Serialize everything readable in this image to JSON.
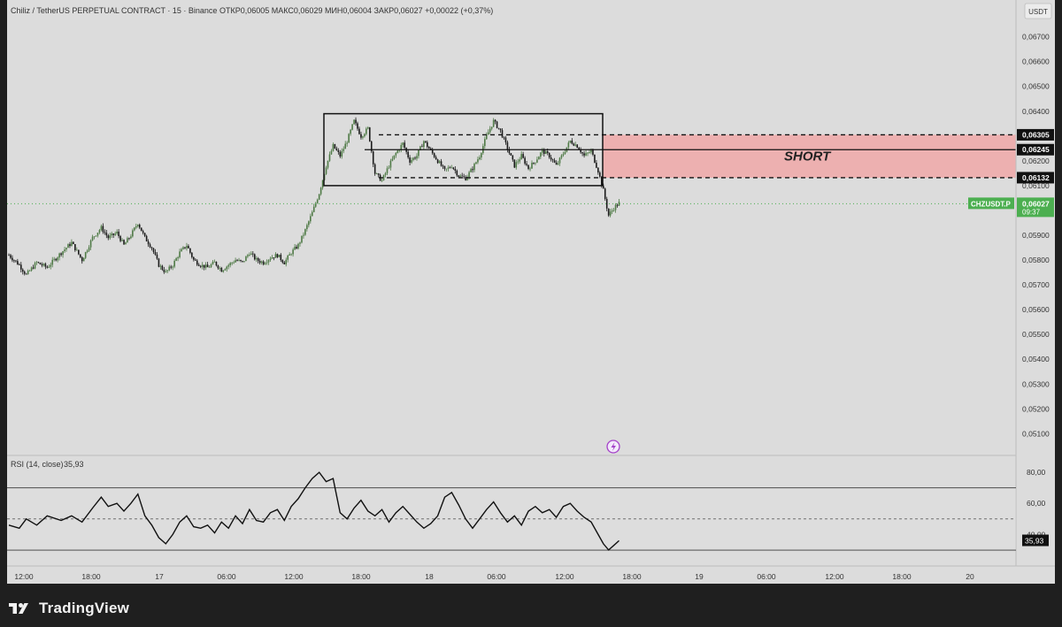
{
  "header": {
    "symbol": "Chiliz / TetherUS PERPETUAL CONTRACT · 15 · Binance",
    "ohlc": "ОТКР0,06005  МАКС0,06029  МИН0,06004  ЗАКР0,06027  +0,00022 (+0,37%)"
  },
  "price_axis": {
    "unit": "USDT",
    "ticks": [
      "0,06700",
      "0,06600",
      "0,06500",
      "0,06400",
      "0,06300",
      "0,06200",
      "0,06100",
      "0,06000",
      "0,05900",
      "0,05800",
      "0,05700",
      "0,05600",
      "0,05500",
      "0,05400",
      "0,05300",
      "0,05200",
      "0,05100"
    ],
    "level_labels": [
      {
        "text": "0,06305",
        "value": 0.06305
      },
      {
        "text": "0,06245",
        "value": 0.06245
      },
      {
        "text": "0,06132",
        "value": 0.06132
      }
    ],
    "current": {
      "symbol": "CHZUSDT.P",
      "price": "0,06027",
      "countdown": "09:37",
      "value": 0.06027,
      "color": "#4caf50"
    }
  },
  "time_axis": {
    "labels": [
      "12:00",
      "18:00",
      "17",
      "06:00",
      "12:00",
      "18:00",
      "18",
      "06:00",
      "12:00",
      "18:00",
      "19",
      "06:00",
      "12:00",
      "18:00",
      "20"
    ]
  },
  "annotation": {
    "short_label": "SHORT",
    "zone_color": "#f0a8a8"
  },
  "rsi": {
    "title": "RSI (14, close)",
    "value": "35,93",
    "ticks": [
      "80,00",
      "60,00",
      "40,00"
    ],
    "levels": {
      "upper": 70,
      "middle": 50,
      "lower": 30
    }
  },
  "footer": {
    "brand": "TradingView"
  },
  "chart_data": [
    {
      "type": "candlestick",
      "title": "Chiliz / TetherUS PERPETUAL CONTRACT · 15 · Binance",
      "ylim": [
        0.0503,
        0.0677
      ],
      "zones": [
        {
          "name": "SHORT",
          "y_low": 0.06132,
          "y_high": 0.06305,
          "color": "#f0a8a8"
        }
      ],
      "range_box": {
        "y_low": 0.061,
        "y_high": 0.0639
      },
      "levels": [
        0.06305,
        0.06245,
        0.06132
      ],
      "close_trace": [
        [
          0,
          0.0582
        ],
        [
          6,
          0.0578
        ],
        [
          10,
          0.0574
        ],
        [
          16,
          0.0579
        ],
        [
          22,
          0.0577
        ],
        [
          30,
          0.0583
        ],
        [
          36,
          0.0587
        ],
        [
          42,
          0.058
        ],
        [
          48,
          0.0589
        ],
        [
          53,
          0.0593
        ],
        [
          57,
          0.0589
        ],
        [
          62,
          0.0591
        ],
        [
          66,
          0.0586
        ],
        [
          70,
          0.059
        ],
        [
          74,
          0.0595
        ],
        [
          78,
          0.0589
        ],
        [
          82,
          0.0585
        ],
        [
          86,
          0.0578
        ],
        [
          90,
          0.0575
        ],
        [
          94,
          0.0578
        ],
        [
          98,
          0.0583
        ],
        [
          102,
          0.0586
        ],
        [
          106,
          0.058
        ],
        [
          110,
          0.0578
        ],
        [
          114,
          0.0577
        ],
        [
          118,
          0.0579
        ],
        [
          122,
          0.0576
        ],
        [
          126,
          0.0578
        ],
        [
          130,
          0.058
        ],
        [
          134,
          0.0579
        ],
        [
          138,
          0.0583
        ],
        [
          142,
          0.058
        ],
        [
          146,
          0.0579
        ],
        [
          150,
          0.0581
        ],
        [
          154,
          0.0582
        ],
        [
          158,
          0.0579
        ],
        [
          162,
          0.0583
        ],
        [
          166,
          0.0586
        ],
        [
          170,
          0.0592
        ],
        [
          174,
          0.0599
        ],
        [
          178,
          0.0607
        ],
        [
          182,
          0.0618
        ],
        [
          186,
          0.0626
        ],
        [
          190,
          0.0622
        ],
        [
          194,
          0.0628
        ],
        [
          198,
          0.0636
        ],
        [
          202,
          0.063
        ],
        [
          206,
          0.0633
        ],
        [
          210,
          0.0615
        ],
        [
          214,
          0.0612
        ],
        [
          218,
          0.0618
        ],
        [
          222,
          0.0623
        ],
        [
          226,
          0.0627
        ],
        [
          230,
          0.062
        ],
        [
          234,
          0.0622
        ],
        [
          238,
          0.0628
        ],
        [
          242,
          0.0624
        ],
        [
          246,
          0.062
        ],
        [
          250,
          0.0616
        ],
        [
          254,
          0.0618
        ],
        [
          258,
          0.0614
        ],
        [
          262,
          0.0613
        ],
        [
          266,
          0.0617
        ],
        [
          270,
          0.0622
        ],
        [
          274,
          0.063
        ],
        [
          278,
          0.0636
        ],
        [
          282,
          0.0632
        ],
        [
          286,
          0.0625
        ],
        [
          290,
          0.0618
        ],
        [
          294,
          0.0622
        ],
        [
          298,
          0.0617
        ],
        [
          302,
          0.062
        ],
        [
          306,
          0.0624
        ],
        [
          310,
          0.0622
        ],
        [
          314,
          0.0618
        ],
        [
          318,
          0.0623
        ],
        [
          322,
          0.0628
        ],
        [
          326,
          0.0626
        ],
        [
          330,
          0.0622
        ],
        [
          334,
          0.0624
        ],
        [
          338,
          0.0616
        ],
        [
          341,
          0.0608
        ],
        [
          344,
          0.0598
        ],
        [
          347,
          0.0601
        ],
        [
          350,
          0.0603
        ]
      ],
      "xlabel": "",
      "ylabel": ""
    },
    {
      "type": "line",
      "title": "RSI (14, close)",
      "ylim": [
        22,
        88
      ],
      "hlines": [
        70,
        50,
        30
      ],
      "x": [
        0,
        6,
        10,
        16,
        22,
        30,
        36,
        42,
        48,
        53,
        57,
        62,
        66,
        70,
        74,
        78,
        82,
        86,
        90,
        94,
        98,
        102,
        106,
        110,
        114,
        118,
        122,
        126,
        130,
        134,
        138,
        142,
        146,
        150,
        154,
        158,
        162,
        166,
        170,
        174,
        178,
        182,
        186,
        190,
        194,
        198,
        202,
        206,
        210,
        214,
        218,
        222,
        226,
        230,
        234,
        238,
        242,
        246,
        250,
        254,
        258,
        262,
        266,
        270,
        274,
        278,
        282,
        286,
        290,
        294,
        298,
        302,
        306,
        310,
        314,
        318,
        322,
        326,
        330,
        334,
        338,
        341,
        344,
        347,
        350
      ],
      "values": [
        46,
        44,
        50,
        46,
        52,
        49,
        52,
        48,
        57,
        64,
        58,
        60,
        55,
        60,
        66,
        52,
        46,
        38,
        34,
        40,
        48,
        52,
        45,
        44,
        46,
        41,
        48,
        44,
        52,
        47,
        56,
        49,
        48,
        54,
        56,
        49,
        58,
        63,
        70,
        76,
        80,
        74,
        76,
        54,
        50,
        57,
        62,
        55,
        52,
        56,
        48,
        54,
        58,
        53,
        48,
        44,
        47,
        52,
        64,
        67,
        59,
        50,
        44,
        50,
        56,
        61,
        54,
        48,
        52,
        46,
        55,
        58,
        54,
        56,
        51,
        58,
        60,
        55,
        51,
        48,
        40,
        34,
        30,
        33,
        36
      ]
    }
  ]
}
